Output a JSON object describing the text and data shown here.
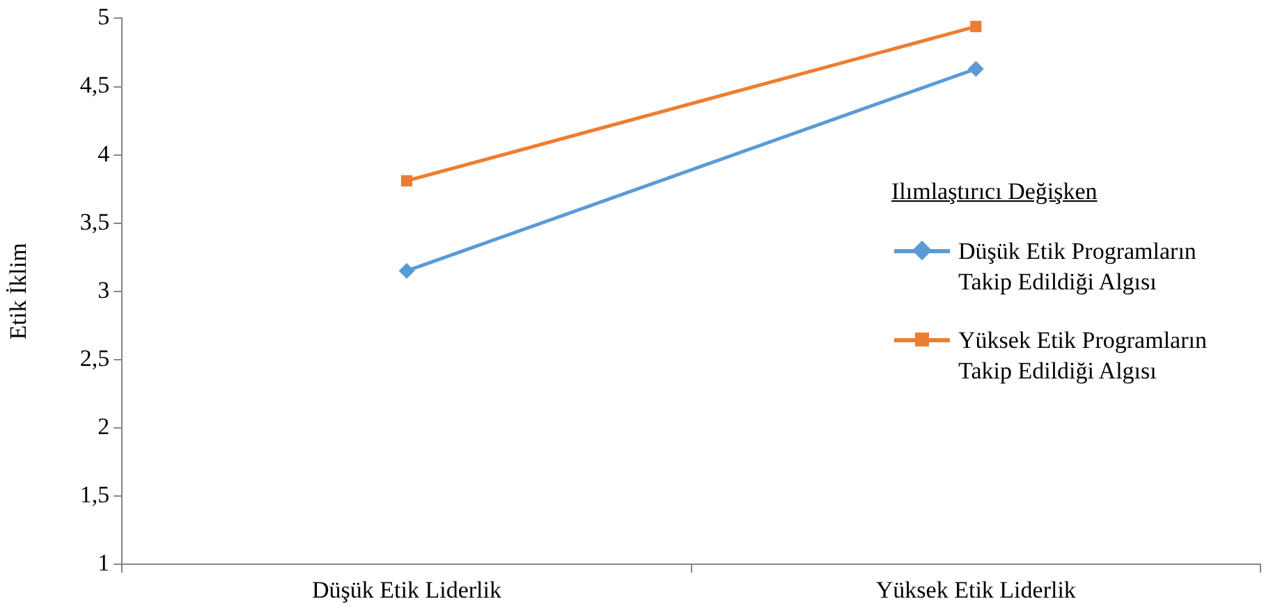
{
  "chart_data": {
    "type": "line",
    "ylabel": "Etik İklim",
    "legend_title": "Ilımlaştırıcı Değişken",
    "legend": "right",
    "grid": false,
    "categories": [
      "Düşük Etik Liderlik",
      "Yüksek Etik Liderlik"
    ],
    "ylim": [
      1,
      5
    ],
    "yticks": [
      1,
      {
        "value": 1.5,
        "label": "1,5"
      },
      2,
      {
        "value": 2.5,
        "label": "2,5"
      },
      3,
      {
        "value": 3.5,
        "label": "3,5"
      },
      4,
      {
        "value": 4.5,
        "label": "4,5"
      },
      5
    ],
    "series": [
      {
        "name": "Düşük Etik Programların Takip Edildiği Algısı",
        "color": "#5b9bd5",
        "marker": "diamond",
        "values": [
          3.15,
          4.63
        ]
      },
      {
        "name": "Yüksek Etik Programların Takip Edildiği Algısı",
        "color": "#ed7d31",
        "marker": "square",
        "values": [
          3.81,
          4.94
        ]
      }
    ]
  }
}
